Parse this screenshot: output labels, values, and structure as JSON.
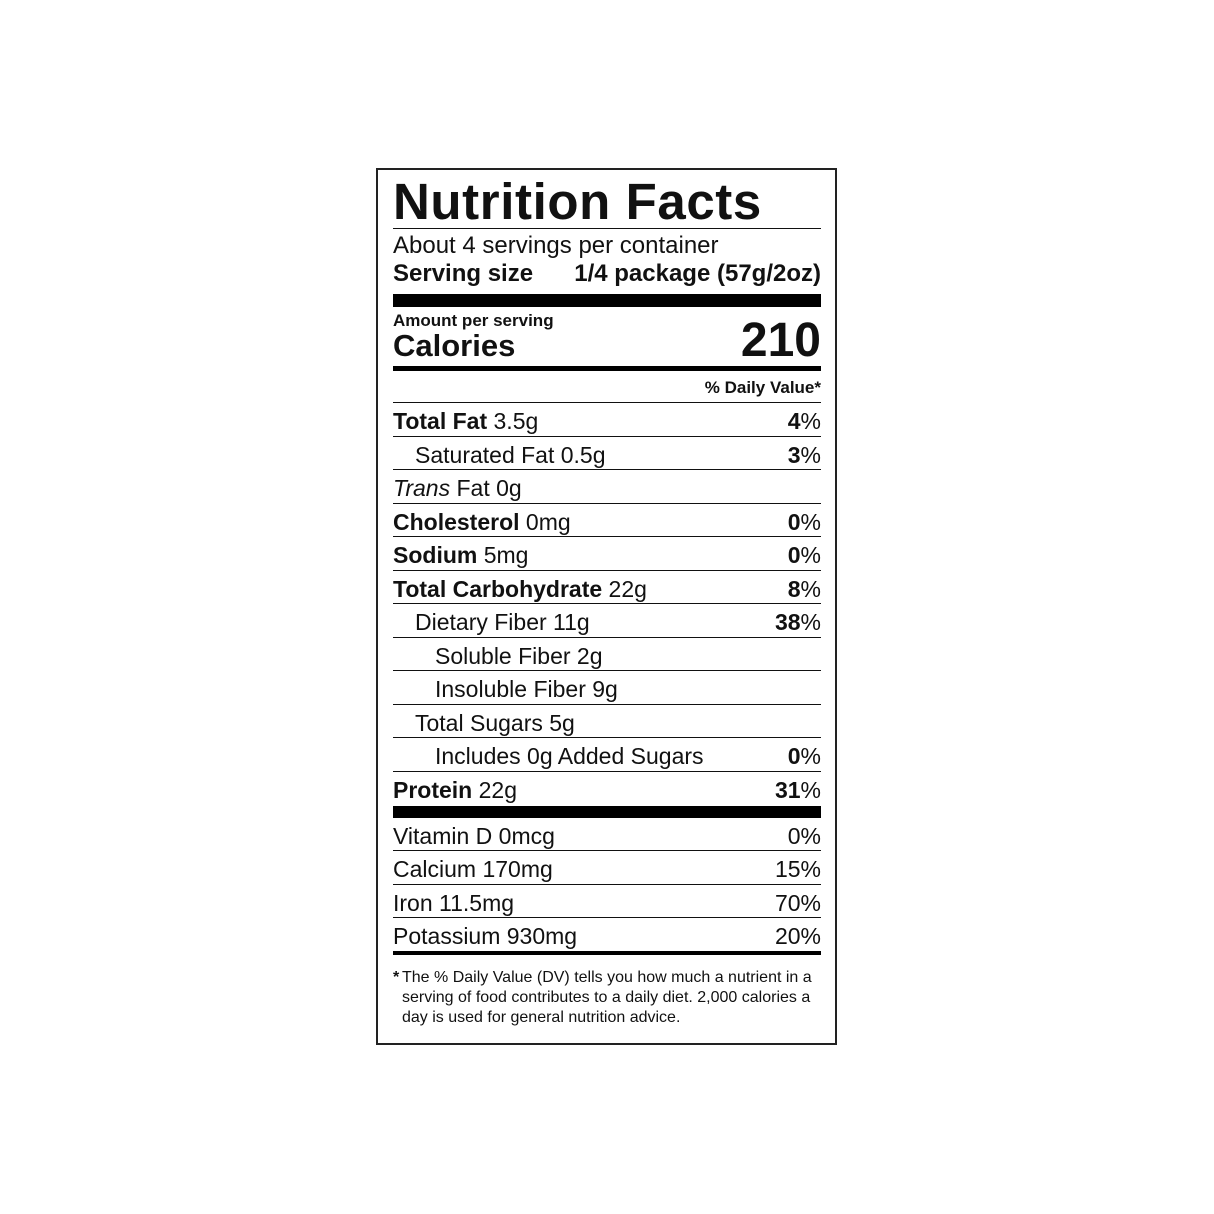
{
  "title": "Nutrition Facts",
  "servings": "About 4 servings per container",
  "serving_size": {
    "label": "Serving size",
    "value": "1/4 package (57g/2oz)"
  },
  "amount_per_serving": "Amount per serving",
  "calories": {
    "label": "Calories",
    "value": "210"
  },
  "daily_value_header": "% Daily Value*",
  "nutrients": [
    {
      "name": "Total Fat",
      "amount": "3.5g",
      "dv": "4",
      "dv_unit": "%"
    },
    {
      "name": "Saturated Fat",
      "amount": "0.5g",
      "dv": "3",
      "dv_unit": "%"
    },
    {
      "name_italic": "Trans",
      "name": "Fat",
      "amount": "0g"
    },
    {
      "name": "Cholesterol",
      "amount": "0mg",
      "dv": "0",
      "dv_unit": "%"
    },
    {
      "name": "Sodium",
      "amount": "5mg",
      "dv": "0",
      "dv_unit": "%"
    },
    {
      "name": "Total Carbohydrate",
      "amount": "22g",
      "dv": "8",
      "dv_unit": "%"
    },
    {
      "name": "Dietary Fiber",
      "amount": "11g",
      "dv": "38",
      "dv_unit": "%"
    },
    {
      "name": "Soluble Fiber",
      "amount": "2g"
    },
    {
      "name": "Insoluble Fiber",
      "amount": "9g"
    },
    {
      "name": "Total Sugars",
      "amount": "5g"
    },
    {
      "name": "Includes 0g Added Sugars",
      "dv": "0",
      "dv_unit": "%"
    },
    {
      "name": "Protein",
      "amount": "22g",
      "dv": "31",
      "dv_unit": "%"
    }
  ],
  "vitamins": [
    {
      "name": "Vitamin D",
      "amount": "0mcg",
      "dv": "0",
      "dv_unit": "%"
    },
    {
      "name": "Calcium",
      "amount": "170mg",
      "dv": "15",
      "dv_unit": "%"
    },
    {
      "name": "Iron",
      "amount": "11.5mg",
      "dv": "70",
      "dv_unit": "%"
    },
    {
      "name": "Potassium",
      "amount": "930mg",
      "dv": "20",
      "dv_unit": "%"
    }
  ],
  "footnote": {
    "mark": "*",
    "text": "The % Daily Value (DV) tells you how much a nutrient in a serving of food contributes to a daily diet. 2,000 calories a day is used for general nutrition advice."
  }
}
